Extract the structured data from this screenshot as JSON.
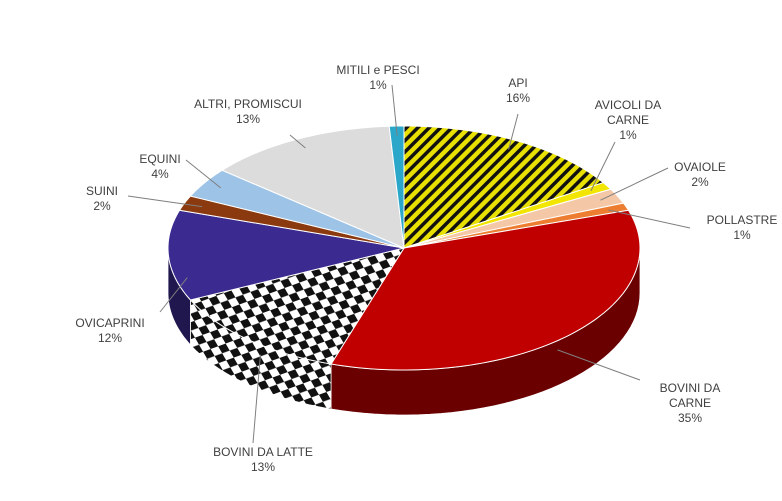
{
  "chart_data": {
    "type": "pie3d",
    "categories": [
      "API",
      "AVICOLI DA CARNE",
      "OVAIOLE",
      "POLLASTRE",
      "BOVINI DA CARNE",
      "BOVINI DA LATTE",
      "OVICAPRINI",
      "SUINI",
      "EQUINI",
      "ALTRI, PROMISCUI",
      "MITILI e PESCI"
    ],
    "values": [
      16,
      1,
      2,
      1,
      35,
      13,
      12,
      2,
      4,
      13,
      1
    ],
    "value_labels": [
      "16%",
      "1%",
      "2%",
      "1%",
      "35%",
      "13%",
      "12%",
      "2%",
      "4%",
      "13%",
      "1%"
    ],
    "colors": [
      "#e8e000",
      "#f2e600",
      "#f4c7a6",
      "#ed7d31",
      "#c00000",
      "#ffffff",
      "#3b2a8f",
      "#8b3a0f",
      "#9dc3e6",
      "#dcdcdc",
      "#2aa7c9"
    ],
    "patterns": [
      "diagonal-stripes",
      "solid",
      "solid",
      "solid",
      "solid",
      "checkerboard",
      "solid",
      "solid",
      "solid",
      "solid",
      "solid"
    ]
  }
}
